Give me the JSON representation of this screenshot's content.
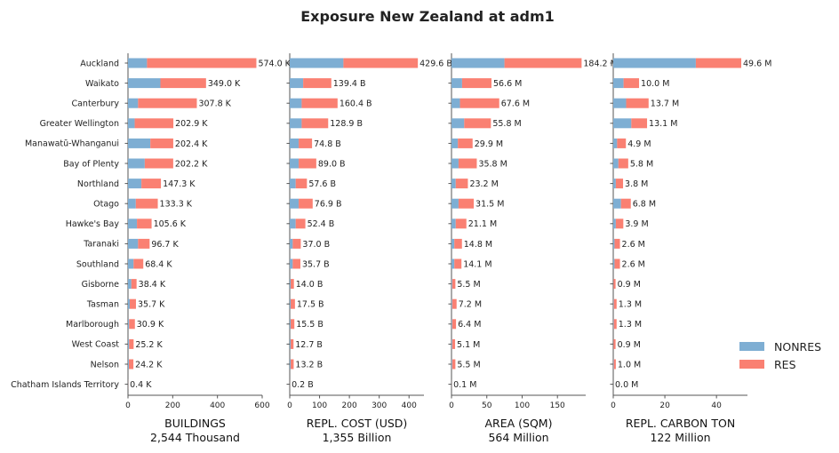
{
  "chart_data": {
    "type": "bar",
    "orientation": "horizontal",
    "stacked": true,
    "title": "Exposure New Zealand at adm1",
    "categories": [
      "Auckland",
      "Waikato",
      "Canterbury",
      "Greater Wellington",
      "Manawatū-Whanganui",
      "Bay of Plenty",
      "Northland",
      "Otago",
      "Hawke's Bay",
      "Taranaki",
      "Southland",
      "Gisborne",
      "Tasman",
      "Marlborough",
      "West Coast",
      "Nelson",
      "Chatham Islands Territory"
    ],
    "legend": {
      "placement": "right",
      "entries": [
        {
          "name": "NONRES",
          "color": "#7eaed3"
        },
        {
          "name": "RES",
          "color": "#fa8072"
        }
      ]
    },
    "grid": false,
    "panels": [
      {
        "xlabel": "BUILDINGS",
        "total_label": "2,544 Thousand",
        "xlim": [
          0,
          600
        ],
        "ticks": [
          0,
          200,
          400,
          600
        ],
        "series": [
          {
            "name": "NONRES",
            "values": [
              85,
              145,
              45,
              30,
              100,
              75,
              60,
              35,
              40,
              45,
              25,
              15,
              8,
              5,
              5,
              4,
              0.1
            ]
          },
          {
            "name": "RES",
            "values": [
              489,
              204,
              262.8,
              172.9,
              102.4,
              127.2,
              87.3,
              98.3,
              65.6,
              51.7,
              43.4,
              23.4,
              27.7,
              25.9,
              20.2,
              20.2,
              0.3
            ]
          }
        ],
        "labels": [
          "574.0 K",
          "349.0 K",
          "307.8 K",
          "202.9 K",
          "202.4 K",
          "202.2 K",
          "147.3 K",
          "133.3 K",
          "105.6 K",
          "96.7 K",
          "68.4 K",
          "38.4 K",
          "35.7 K",
          "30.9 K",
          "25.2 K",
          "24.2 K",
          "0.4 K"
        ]
      },
      {
        "xlabel": "REPL. COST (USD)",
        "total_label": "1,355 Billion",
        "xlim": [
          0,
          450
        ],
        "ticks": [
          0,
          100,
          200,
          300,
          400
        ],
        "series": [
          {
            "name": "NONRES",
            "values": [
              180,
              45,
              40,
              40,
              30,
              30,
              20,
              30,
              20,
              10,
              10,
              3,
              3,
              3,
              3,
              3,
              0.05
            ]
          },
          {
            "name": "RES",
            "values": [
              249.6,
              94.4,
              120.4,
              88.9,
              44.8,
              59,
              37.6,
              46.9,
              32.4,
              27,
              25.7,
              11,
              14.5,
              12.5,
              9.7,
              10.2,
              0.15
            ]
          }
        ],
        "labels": [
          "429.6 B",
          "139.4 B",
          "160.4 B",
          "128.9 B",
          "74.8 B",
          "89.0 B",
          "57.6 B",
          "76.9 B",
          "52.4 B",
          "37.0 B",
          "35.7 B",
          "14.0 B",
          "17.5 B",
          "15.5 B",
          "12.7 B",
          "13.2 B",
          "0.2 B"
        ]
      },
      {
        "xlabel": "AREA (SQM)",
        "total_label": "564 Million",
        "xlim": [
          0,
          190
        ],
        "ticks": [
          0,
          50,
          100,
          150
        ],
        "series": [
          {
            "name": "NONRES",
            "values": [
              75,
              15,
              12,
              18,
              9,
              10,
              6,
              10,
              6,
              4,
              4,
              1,
              1,
              1,
              1,
              1,
              0.03
            ]
          },
          {
            "name": "RES",
            "values": [
              109.2,
              41.6,
              55.6,
              37.8,
              20.9,
              25.8,
              17.2,
              21.5,
              15.1,
              10.8,
              10.1,
              4.5,
              6.2,
              5.4,
              4.1,
              4.5,
              0.07
            ]
          }
        ],
        "labels": [
          "184.2 M",
          "56.6 M",
          "67.6 M",
          "55.8 M",
          "29.9 M",
          "35.8 M",
          "23.2 M",
          "31.5 M",
          "21.1 M",
          "14.8 M",
          "14.1 M",
          "5.5 M",
          "7.2 M",
          "6.4 M",
          "5.1 M",
          "5.5 M",
          "0.1 M"
        ]
      },
      {
        "xlabel": "REPL. CARBON TON",
        "total_label": "122 Million",
        "xlim": [
          0,
          52
        ],
        "ticks": [
          0,
          20,
          40
        ],
        "series": [
          {
            "name": "NONRES",
            "values": [
              32,
              4,
              5,
              7,
              1.5,
              2,
              1,
              3,
              1,
              0.5,
              0.5,
              0.1,
              0.2,
              0.2,
              0.1,
              0.2,
              0
            ]
          },
          {
            "name": "RES",
            "values": [
              17.6,
              6,
              8.7,
              6.1,
              3.4,
              3.8,
              2.8,
              3.8,
              2.9,
              2.1,
              2.1,
              0.8,
              1.1,
              1.1,
              0.8,
              0.8,
              0
            ]
          }
        ],
        "labels": [
          "49.6 M",
          "10.0 M",
          "13.7 M",
          "13.1 M",
          "4.9 M",
          "5.8 M",
          "3.8 M",
          "6.8 M",
          "3.9 M",
          "2.6 M",
          "2.6 M",
          "0.9 M",
          "1.3 M",
          "1.3 M",
          "0.9 M",
          "1.0 M",
          "0.0 M"
        ]
      }
    ]
  }
}
